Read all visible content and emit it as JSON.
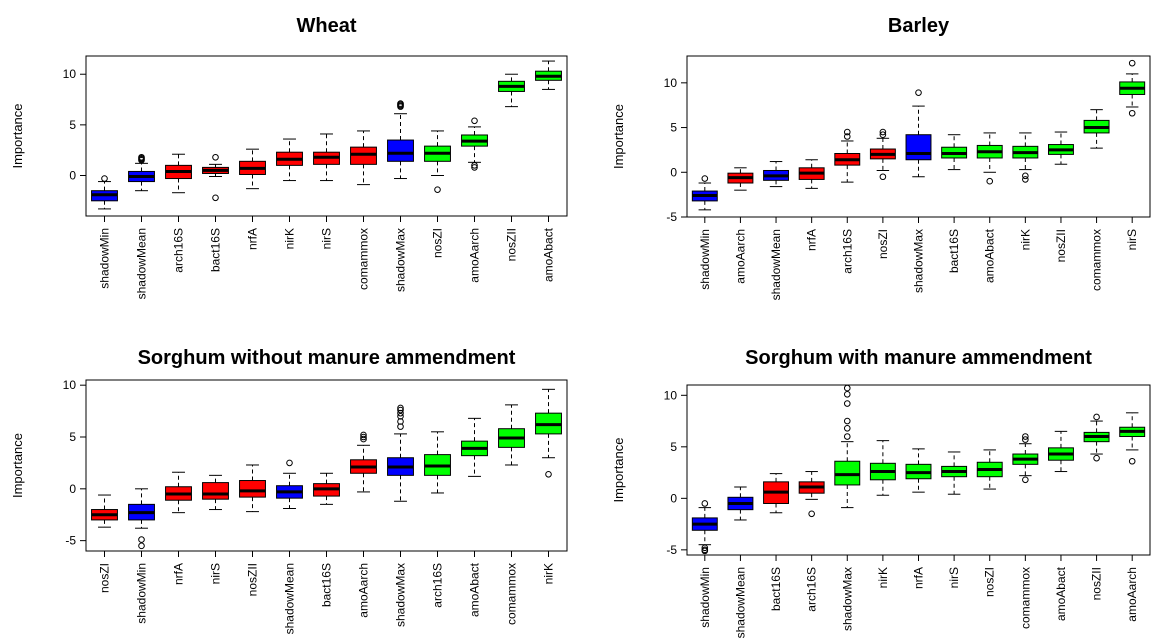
{
  "figure": {
    "title": ""
  },
  "colors": {
    "shadow": "#0000ff",
    "rejected": "#ff0000",
    "confirmed": "#00ff00",
    "tentative": "#ffff00"
  },
  "chart_data": [
    {
      "type": "boxplot",
      "title": "Wheat",
      "ylabel": "Importance",
      "ylim": [
        -4,
        11.8
      ],
      "yticks": [
        0,
        5,
        10
      ],
      "boxes": [
        {
          "label": "shadowMin",
          "color": "shadow",
          "whislo": -3.3,
          "q1": -2.5,
          "median": -1.9,
          "q3": -1.5,
          "whishi": -0.6,
          "outliers": [
            -0.3
          ]
        },
        {
          "label": "shadowMean",
          "color": "shadow",
          "whislo": -1.5,
          "q1": -0.6,
          "median": -0.1,
          "q3": 0.4,
          "whishi": 1.2,
          "outliers": [
            1.5,
            1.6,
            1.7,
            1.8
          ]
        },
        {
          "label": "arch16S",
          "color": "rejected",
          "whislo": -1.7,
          "q1": -0.3,
          "median": 0.4,
          "q3": 1.0,
          "whishi": 2.1,
          "outliers": []
        },
        {
          "label": "bact16S",
          "color": "rejected",
          "whislo": -0.1,
          "q1": 0.2,
          "median": 0.5,
          "q3": 0.8,
          "whishi": 1.1,
          "outliers": [
            1.8,
            -2.2
          ]
        },
        {
          "label": "nrfA",
          "color": "rejected",
          "whislo": -1.3,
          "q1": 0.1,
          "median": 0.7,
          "q3": 1.4,
          "whishi": 2.6,
          "outliers": []
        },
        {
          "label": "nirK",
          "color": "rejected",
          "whislo": -0.5,
          "q1": 1.0,
          "median": 1.6,
          "q3": 2.3,
          "whishi": 3.6,
          "outliers": []
        },
        {
          "label": "nirS",
          "color": "rejected",
          "whislo": -0.5,
          "q1": 1.1,
          "median": 1.8,
          "q3": 2.3,
          "whishi": 4.1,
          "outliers": []
        },
        {
          "label": "comammox",
          "color": "rejected",
          "whislo": -0.9,
          "q1": 1.1,
          "median": 2.1,
          "q3": 2.8,
          "whishi": 4.4,
          "outliers": []
        },
        {
          "label": "shadowMax",
          "color": "shadow",
          "whislo": -0.3,
          "q1": 1.4,
          "median": 2.2,
          "q3": 3.5,
          "whishi": 6.1,
          "outliers": [
            6.8,
            6.9,
            7.0,
            7.1
          ]
        },
        {
          "label": "nosZI",
          "color": "confirmed",
          "whislo": 0.0,
          "q1": 1.4,
          "median": 2.2,
          "q3": 2.9,
          "whishi": 4.4,
          "outliers": [
            -1.4
          ]
        },
        {
          "label": "amoAarch",
          "color": "confirmed",
          "whislo": 1.3,
          "q1": 2.9,
          "median": 3.4,
          "q3": 4.0,
          "whishi": 4.8,
          "outliers": [
            5.4,
            0.8,
            1.0
          ]
        },
        {
          "label": "nosZII",
          "color": "confirmed",
          "whislo": 6.8,
          "q1": 8.3,
          "median": 8.8,
          "q3": 9.3,
          "whishi": 10.0,
          "outliers": []
        },
        {
          "label": "amoAbact",
          "color": "confirmed",
          "whislo": 8.5,
          "q1": 9.4,
          "median": 9.8,
          "q3": 10.3,
          "whishi": 11.3,
          "outliers": []
        }
      ]
    },
    {
      "type": "boxplot",
      "title": "Barley",
      "ylabel": "Importance",
      "ylim": [
        -5,
        13
      ],
      "yticks": [
        -5,
        0,
        5,
        10
      ],
      "boxes": [
        {
          "label": "shadowMin",
          "color": "shadow",
          "whislo": -4.2,
          "q1": -3.2,
          "median": -2.6,
          "q3": -2.1,
          "whishi": -1.2,
          "outliers": [
            -0.7
          ]
        },
        {
          "label": "amoAarch",
          "color": "rejected",
          "whislo": -2.0,
          "q1": -1.2,
          "median": -0.6,
          "q3": -0.1,
          "whishi": 0.5,
          "outliers": []
        },
        {
          "label": "shadowMean",
          "color": "shadow",
          "whislo": -1.6,
          "q1": -0.9,
          "median": -0.4,
          "q3": 0.2,
          "whishi": 1.2,
          "outliers": []
        },
        {
          "label": "nrfA",
          "color": "rejected",
          "whislo": -1.8,
          "q1": -0.8,
          "median": -0.1,
          "q3": 0.5,
          "whishi": 1.4,
          "outliers": []
        },
        {
          "label": "arch16S",
          "color": "rejected",
          "whislo": -1.1,
          "q1": 0.8,
          "median": 1.4,
          "q3": 2.1,
          "whishi": 3.5,
          "outliers": [
            4.0,
            4.5
          ]
        },
        {
          "label": "nosZI",
          "color": "rejected",
          "whislo": 0.2,
          "q1": 1.5,
          "median": 2.0,
          "q3": 2.6,
          "whishi": 3.8,
          "outliers": [
            4.2,
            4.5,
            -0.5
          ]
        },
        {
          "label": "shadowMax",
          "color": "shadow",
          "whislo": -0.5,
          "q1": 1.4,
          "median": 2.1,
          "q3": 4.2,
          "whishi": 7.4,
          "outliers": [
            8.9
          ]
        },
        {
          "label": "bact16S",
          "color": "confirmed",
          "whislo": 0.3,
          "q1": 1.6,
          "median": 2.1,
          "q3": 2.8,
          "whishi": 4.2,
          "outliers": []
        },
        {
          "label": "amoAbact",
          "color": "confirmed",
          "whislo": 0.0,
          "q1": 1.6,
          "median": 2.3,
          "q3": 3.0,
          "whishi": 4.4,
          "outliers": [
            -1.0
          ]
        },
        {
          "label": "nirK",
          "color": "confirmed",
          "whislo": 0.3,
          "q1": 1.6,
          "median": 2.2,
          "q3": 2.9,
          "whishi": 4.4,
          "outliers": [
            -0.4,
            -0.8
          ]
        },
        {
          "label": "nosZII",
          "color": "confirmed",
          "whislo": 0.9,
          "q1": 2.0,
          "median": 2.5,
          "q3": 3.1,
          "whishi": 4.5,
          "outliers": []
        },
        {
          "label": "comammox",
          "color": "confirmed",
          "whislo": 2.7,
          "q1": 4.4,
          "median": 5.0,
          "q3": 5.8,
          "whishi": 7.0,
          "outliers": []
        },
        {
          "label": "nirS",
          "color": "confirmed",
          "whislo": 7.3,
          "q1": 8.7,
          "median": 9.4,
          "q3": 10.1,
          "whishi": 11.0,
          "outliers": [
            12.2,
            6.6
          ]
        }
      ]
    },
    {
      "type": "boxplot",
      "title": "Sorghum without manure ammendment",
      "ylabel": "Importance",
      "ylim": [
        -6,
        10.5
      ],
      "yticks": [
        -5,
        0,
        5,
        10
      ],
      "boxes": [
        {
          "label": "nosZI",
          "color": "rejected",
          "whislo": -3.7,
          "q1": -3.0,
          "median": -2.5,
          "q3": -2.0,
          "whishi": -0.6,
          "outliers": []
        },
        {
          "label": "shadowMin",
          "color": "shadow",
          "whislo": -3.8,
          "q1": -3.0,
          "median": -2.3,
          "q3": -1.5,
          "whishi": 0.0,
          "outliers": [
            -4.9,
            -5.5
          ]
        },
        {
          "label": "nrfA",
          "color": "rejected",
          "whislo": -2.3,
          "q1": -1.1,
          "median": -0.5,
          "q3": 0.2,
          "whishi": 1.6,
          "outliers": []
        },
        {
          "label": "nirS",
          "color": "rejected",
          "whislo": -2.0,
          "q1": -1.0,
          "median": -0.5,
          "q3": 0.6,
          "whishi": 1.3,
          "outliers": []
        },
        {
          "label": "nosZII",
          "color": "rejected",
          "whislo": -2.2,
          "q1": -0.8,
          "median": -0.2,
          "q3": 0.8,
          "whishi": 2.3,
          "outliers": []
        },
        {
          "label": "shadowMean",
          "color": "shadow",
          "whislo": -1.9,
          "q1": -0.9,
          "median": -0.3,
          "q3": 0.3,
          "whishi": 1.5,
          "outliers": [
            2.5
          ]
        },
        {
          "label": "bact16S",
          "color": "rejected",
          "whislo": -1.5,
          "q1": -0.7,
          "median": 0.0,
          "q3": 0.5,
          "whishi": 1.5,
          "outliers": []
        },
        {
          "label": "amoAarch",
          "color": "rejected",
          "whislo": -0.3,
          "q1": 1.5,
          "median": 2.1,
          "q3": 2.8,
          "whishi": 4.2,
          "outliers": [
            4.8,
            5.0,
            5.2
          ]
        },
        {
          "label": "shadowMax",
          "color": "shadow",
          "whislo": -1.2,
          "q1": 1.3,
          "median": 2.1,
          "q3": 3.0,
          "whishi": 5.3,
          "outliers": [
            6.0,
            6.5,
            7.0,
            7.3,
            7.6,
            7.8
          ]
        },
        {
          "label": "arch16S",
          "color": "confirmed",
          "whislo": -0.4,
          "q1": 1.3,
          "median": 2.2,
          "q3": 3.3,
          "whishi": 5.5,
          "outliers": []
        },
        {
          "label": "amoAbact",
          "color": "confirmed",
          "whislo": 1.2,
          "q1": 3.2,
          "median": 3.9,
          "q3": 4.6,
          "whishi": 6.8,
          "outliers": []
        },
        {
          "label": "comammox",
          "color": "confirmed",
          "whislo": 2.3,
          "q1": 4.0,
          "median": 4.9,
          "q3": 5.8,
          "whishi": 8.1,
          "outliers": []
        },
        {
          "label": "nirK",
          "color": "confirmed",
          "whislo": 3.0,
          "q1": 5.3,
          "median": 6.2,
          "q3": 7.3,
          "whishi": 9.6,
          "outliers": [
            1.4
          ]
        }
      ]
    },
    {
      "type": "boxplot",
      "title": "Sorghum with manure ammendment",
      "ylabel": "Importance",
      "ylim": [
        -5.5,
        11
      ],
      "yticks": [
        -5,
        0,
        5,
        10
      ],
      "boxes": [
        {
          "label": "shadowMin",
          "color": "shadow",
          "whislo": -4.5,
          "q1": -3.1,
          "median": -2.5,
          "q3": -1.9,
          "whishi": -0.9,
          "outliers": [
            -0.5,
            -4.8,
            -5.0,
            -5.1
          ]
        },
        {
          "label": "shadowMean",
          "color": "shadow",
          "whislo": -2.1,
          "q1": -1.1,
          "median": -0.5,
          "q3": 0.1,
          "whishi": 1.1,
          "outliers": []
        },
        {
          "label": "bact16S",
          "color": "rejected",
          "whislo": -1.4,
          "q1": -0.5,
          "median": 0.6,
          "q3": 1.6,
          "whishi": 2.4,
          "outliers": []
        },
        {
          "label": "arch16S",
          "color": "rejected",
          "whislo": -0.1,
          "q1": 0.5,
          "median": 1.1,
          "q3": 1.6,
          "whishi": 2.6,
          "outliers": [
            -1.5
          ]
        },
        {
          "label": "shadowMax",
          "color": "confirmed",
          "whislo": -0.9,
          "q1": 1.3,
          "median": 2.3,
          "q3": 3.6,
          "whishi": 5.5,
          "outliers": [
            6.0,
            6.8,
            7.5,
            9.2,
            10.1,
            10.7
          ]
        },
        {
          "label": "nirK",
          "color": "confirmed",
          "whislo": 0.3,
          "q1": 1.8,
          "median": 2.6,
          "q3": 3.4,
          "whishi": 5.6,
          "outliers": []
        },
        {
          "label": "nrfA",
          "color": "confirmed",
          "whislo": 0.6,
          "q1": 1.9,
          "median": 2.5,
          "q3": 3.3,
          "whishi": 4.8,
          "outliers": []
        },
        {
          "label": "nirS",
          "color": "confirmed",
          "whislo": 0.4,
          "q1": 2.1,
          "median": 2.6,
          "q3": 3.1,
          "whishi": 4.5,
          "outliers": []
        },
        {
          "label": "nosZI",
          "color": "confirmed",
          "whislo": 0.9,
          "q1": 2.1,
          "median": 2.8,
          "q3": 3.5,
          "whishi": 4.7,
          "outliers": []
        },
        {
          "label": "comammox",
          "color": "confirmed",
          "whislo": 2.2,
          "q1": 3.3,
          "median": 3.8,
          "q3": 4.3,
          "whishi": 5.3,
          "outliers": [
            5.7,
            6.0,
            1.8
          ]
        },
        {
          "label": "amoAbact",
          "color": "confirmed",
          "whislo": 2.6,
          "q1": 3.7,
          "median": 4.3,
          "q3": 4.9,
          "whishi": 6.5,
          "outliers": []
        },
        {
          "label": "nosZII",
          "color": "confirmed",
          "whislo": 4.3,
          "q1": 5.5,
          "median": 6.0,
          "q3": 6.4,
          "whishi": 7.5,
          "outliers": [
            7.9,
            3.9
          ]
        },
        {
          "label": "amoAarch",
          "color": "confirmed",
          "whislo": 4.7,
          "q1": 6.0,
          "median": 6.5,
          "q3": 6.9,
          "whishi": 8.3,
          "outliers": [
            3.6
          ]
        }
      ]
    }
  ]
}
